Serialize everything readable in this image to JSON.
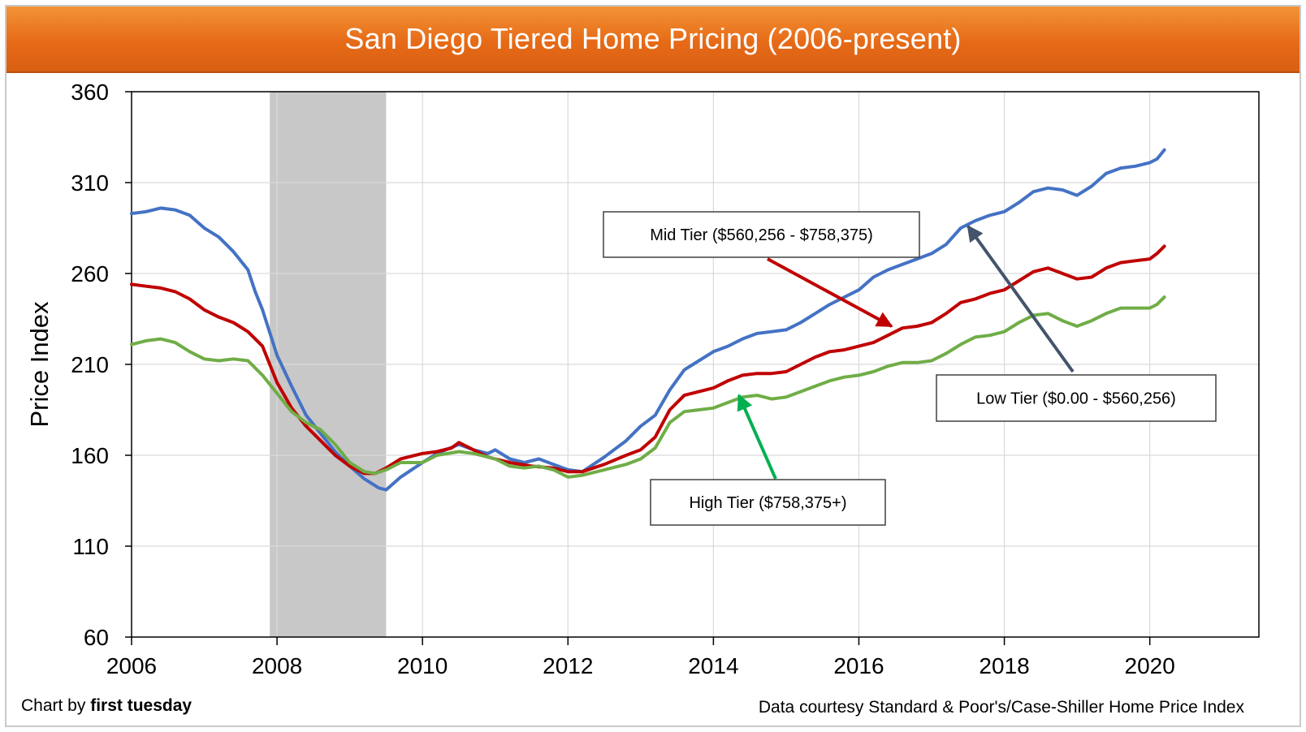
{
  "title": "San Diego Tiered Home Pricing (2006-present)",
  "credit": {
    "prefix": "Chart by ",
    "brand": "first tuesday"
  },
  "source": "Data courtesy Standard & Poor's/Case-Shiller Home Price Index",
  "colors": {
    "low": "#4472c4",
    "mid": "#c00000",
    "high": "#70ad47",
    "recession": "#c8c8c8",
    "grid": "#d9d9d9"
  },
  "chart_data": {
    "type": "line",
    "ylabel": "Price Index",
    "xlabel": "",
    "xlim": [
      2006,
      2021.5
    ],
    "ylim": [
      60,
      360
    ],
    "x_ticks": [
      "2006",
      "2008",
      "2010",
      "2012",
      "2014",
      "2016",
      "2018",
      "2020"
    ],
    "y_ticks": [
      "60",
      "110",
      "160",
      "210",
      "260",
      "310",
      "360"
    ],
    "grid": true,
    "recession_band": [
      2007.9,
      2009.5
    ],
    "series": [
      {
        "key": "low",
        "points": [
          [
            2006.0,
            293
          ],
          [
            2006.2,
            294
          ],
          [
            2006.4,
            296
          ],
          [
            2006.6,
            295
          ],
          [
            2006.8,
            292
          ],
          [
            2007.0,
            285
          ],
          [
            2007.2,
            280
          ],
          [
            2007.4,
            272
          ],
          [
            2007.6,
            262
          ],
          [
            2007.7,
            250
          ],
          [
            2007.8,
            240
          ],
          [
            2008.0,
            215
          ],
          [
            2008.2,
            198
          ],
          [
            2008.4,
            182
          ],
          [
            2008.6,
            172
          ],
          [
            2008.8,
            162
          ],
          [
            2009.0,
            154
          ],
          [
            2009.2,
            147
          ],
          [
            2009.4,
            142
          ],
          [
            2009.5,
            141
          ],
          [
            2009.7,
            148
          ],
          [
            2010.0,
            156
          ],
          [
            2010.2,
            161
          ],
          [
            2010.5,
            166
          ],
          [
            2010.7,
            163
          ],
          [
            2010.9,
            161
          ],
          [
            2011.0,
            163
          ],
          [
            2011.2,
            158
          ],
          [
            2011.4,
            156
          ],
          [
            2011.6,
            158
          ],
          [
            2011.8,
            155
          ],
          [
            2012.0,
            152
          ],
          [
            2012.2,
            151
          ],
          [
            2012.5,
            159
          ],
          [
            2012.8,
            168
          ],
          [
            2013.0,
            176
          ],
          [
            2013.2,
            182
          ],
          [
            2013.4,
            196
          ],
          [
            2013.6,
            207
          ],
          [
            2013.8,
            212
          ],
          [
            2014.0,
            217
          ],
          [
            2014.2,
            220
          ],
          [
            2014.4,
            224
          ],
          [
            2014.6,
            227
          ],
          [
            2014.8,
            228
          ],
          [
            2015.0,
            229
          ],
          [
            2015.2,
            233
          ],
          [
            2015.4,
            238
          ],
          [
            2015.6,
            243
          ],
          [
            2015.8,
            247
          ],
          [
            2016.0,
            251
          ],
          [
            2016.2,
            258
          ],
          [
            2016.4,
            262
          ],
          [
            2016.6,
            265
          ],
          [
            2016.8,
            268
          ],
          [
            2017.0,
            271
          ],
          [
            2017.2,
            276
          ],
          [
            2017.4,
            285
          ],
          [
            2017.6,
            289
          ],
          [
            2017.8,
            292
          ],
          [
            2018.0,
            294
          ],
          [
            2018.2,
            299
          ],
          [
            2018.4,
            305
          ],
          [
            2018.6,
            307
          ],
          [
            2018.8,
            306
          ],
          [
            2019.0,
            303
          ],
          [
            2019.2,
            308
          ],
          [
            2019.4,
            315
          ],
          [
            2019.6,
            318
          ],
          [
            2019.8,
            319
          ],
          [
            2020.0,
            321
          ],
          [
            2020.1,
            323
          ],
          [
            2020.2,
            328
          ]
        ]
      },
      {
        "key": "mid",
        "points": [
          [
            2006.0,
            254
          ],
          [
            2006.2,
            253
          ],
          [
            2006.4,
            252
          ],
          [
            2006.6,
            250
          ],
          [
            2006.8,
            246
          ],
          [
            2007.0,
            240
          ],
          [
            2007.2,
            236
          ],
          [
            2007.4,
            233
          ],
          [
            2007.6,
            228
          ],
          [
            2007.8,
            220
          ],
          [
            2008.0,
            200
          ],
          [
            2008.2,
            186
          ],
          [
            2008.4,
            176
          ],
          [
            2008.6,
            168
          ],
          [
            2008.8,
            160
          ],
          [
            2009.0,
            154
          ],
          [
            2009.2,
            150
          ],
          [
            2009.35,
            150
          ],
          [
            2009.5,
            153
          ],
          [
            2009.7,
            158
          ],
          [
            2010.0,
            161
          ],
          [
            2010.2,
            162
          ],
          [
            2010.4,
            164
          ],
          [
            2010.5,
            167
          ],
          [
            2010.7,
            163
          ],
          [
            2010.9,
            159
          ],
          [
            2011.0,
            158
          ],
          [
            2011.2,
            156
          ],
          [
            2011.5,
            154
          ],
          [
            2011.8,
            153
          ],
          [
            2012.0,
            151
          ],
          [
            2012.2,
            151
          ],
          [
            2012.5,
            155
          ],
          [
            2012.8,
            160
          ],
          [
            2013.0,
            163
          ],
          [
            2013.2,
            170
          ],
          [
            2013.4,
            185
          ],
          [
            2013.6,
            193
          ],
          [
            2013.8,
            195
          ],
          [
            2014.0,
            197
          ],
          [
            2014.2,
            201
          ],
          [
            2014.4,
            204
          ],
          [
            2014.6,
            205
          ],
          [
            2014.8,
            205
          ],
          [
            2015.0,
            206
          ],
          [
            2015.2,
            210
          ],
          [
            2015.4,
            214
          ],
          [
            2015.6,
            217
          ],
          [
            2015.8,
            218
          ],
          [
            2016.0,
            220
          ],
          [
            2016.2,
            222
          ],
          [
            2016.4,
            226
          ],
          [
            2016.6,
            230
          ],
          [
            2016.8,
            231
          ],
          [
            2017.0,
            233
          ],
          [
            2017.2,
            238
          ],
          [
            2017.4,
            244
          ],
          [
            2017.6,
            246
          ],
          [
            2017.8,
            249
          ],
          [
            2018.0,
            251
          ],
          [
            2018.2,
            256
          ],
          [
            2018.4,
            261
          ],
          [
            2018.6,
            263
          ],
          [
            2018.8,
            260
          ],
          [
            2019.0,
            257
          ],
          [
            2019.2,
            258
          ],
          [
            2019.4,
            263
          ],
          [
            2019.6,
            266
          ],
          [
            2019.8,
            267
          ],
          [
            2020.0,
            268
          ],
          [
            2020.1,
            271
          ],
          [
            2020.2,
            275
          ]
        ]
      },
      {
        "key": "high",
        "points": [
          [
            2006.0,
            221
          ],
          [
            2006.2,
            223
          ],
          [
            2006.4,
            224
          ],
          [
            2006.6,
            222
          ],
          [
            2006.8,
            217
          ],
          [
            2007.0,
            213
          ],
          [
            2007.2,
            212
          ],
          [
            2007.4,
            213
          ],
          [
            2007.6,
            212
          ],
          [
            2007.8,
            204
          ],
          [
            2008.0,
            194
          ],
          [
            2008.2,
            184
          ],
          [
            2008.4,
            178
          ],
          [
            2008.6,
            174
          ],
          [
            2008.8,
            166
          ],
          [
            2009.0,
            156
          ],
          [
            2009.2,
            151
          ],
          [
            2009.35,
            150
          ],
          [
            2009.5,
            152
          ],
          [
            2009.7,
            156
          ],
          [
            2010.0,
            156
          ],
          [
            2010.2,
            160
          ],
          [
            2010.5,
            162
          ],
          [
            2010.7,
            161
          ],
          [
            2010.9,
            159
          ],
          [
            2011.0,
            158
          ],
          [
            2011.2,
            154
          ],
          [
            2011.4,
            153
          ],
          [
            2011.6,
            154
          ],
          [
            2011.8,
            152
          ],
          [
            2012.0,
            148
          ],
          [
            2012.2,
            149
          ],
          [
            2012.5,
            152
          ],
          [
            2012.8,
            155
          ],
          [
            2013.0,
            158
          ],
          [
            2013.2,
            164
          ],
          [
            2013.4,
            178
          ],
          [
            2013.6,
            184
          ],
          [
            2013.8,
            185
          ],
          [
            2014.0,
            186
          ],
          [
            2014.2,
            189
          ],
          [
            2014.4,
            192
          ],
          [
            2014.6,
            193
          ],
          [
            2014.8,
            191
          ],
          [
            2015.0,
            192
          ],
          [
            2015.2,
            195
          ],
          [
            2015.4,
            198
          ],
          [
            2015.6,
            201
          ],
          [
            2015.8,
            203
          ],
          [
            2016.0,
            204
          ],
          [
            2016.2,
            206
          ],
          [
            2016.4,
            209
          ],
          [
            2016.6,
            211
          ],
          [
            2016.8,
            211
          ],
          [
            2017.0,
            212
          ],
          [
            2017.2,
            216
          ],
          [
            2017.4,
            221
          ],
          [
            2017.6,
            225
          ],
          [
            2017.8,
            226
          ],
          [
            2018.0,
            228
          ],
          [
            2018.2,
            233
          ],
          [
            2018.4,
            237
          ],
          [
            2018.6,
            238
          ],
          [
            2018.8,
            234
          ],
          [
            2019.0,
            231
          ],
          [
            2019.2,
            234
          ],
          [
            2019.4,
            238
          ],
          [
            2019.6,
            241
          ],
          [
            2019.8,
            241
          ],
          [
            2020.0,
            241
          ],
          [
            2020.1,
            243
          ],
          [
            2020.2,
            247
          ]
        ]
      }
    ],
    "annotations": [
      {
        "key": "mid",
        "text": "Mid Tier ($560,256 - $758,375)",
        "pointer": [
          2016.45,
          231
        ]
      },
      {
        "key": "low",
        "text": "Low Tier ($0.00 - $560,256)",
        "pointer": [
          2017.5,
          286
        ]
      },
      {
        "key": "high",
        "text": "High Tier ($758,375+)",
        "pointer": [
          2014.35,
          193
        ]
      }
    ]
  }
}
